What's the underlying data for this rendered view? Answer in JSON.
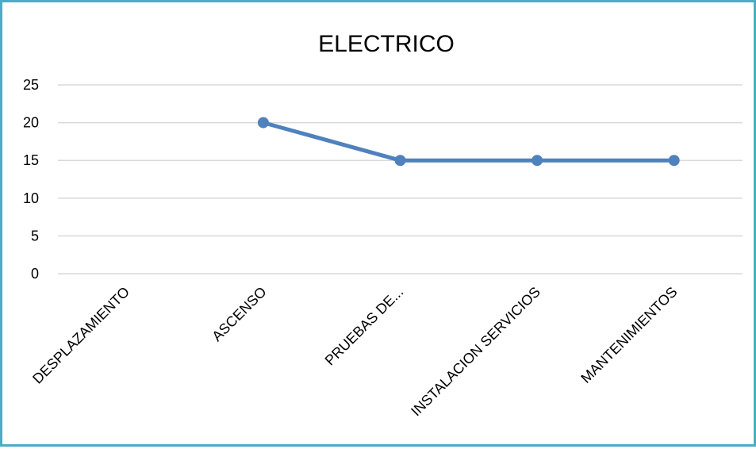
{
  "chart_data": {
    "type": "line",
    "title": "ELECTRICO",
    "xlabel": "",
    "ylabel": "",
    "categories": [
      "DESPLAZAMIENTO",
      "ASCENSO",
      "PRUEBAS DE...",
      "INSTALACION SERVICIOS",
      "MANTENIMIENTOS"
    ],
    "series": [
      {
        "values": [
          null,
          20,
          15,
          15,
          15
        ],
        "color": "#4f81bd"
      }
    ],
    "ylim": [
      0,
      25
    ],
    "yticks": [
      "0",
      "5",
      "10",
      "15",
      "20",
      "25"
    ],
    "grid": true,
    "legend": "none",
    "colors": {
      "line": "#4f81bd",
      "grid": "#d9d9d9",
      "border": "#4bacc6"
    }
  }
}
